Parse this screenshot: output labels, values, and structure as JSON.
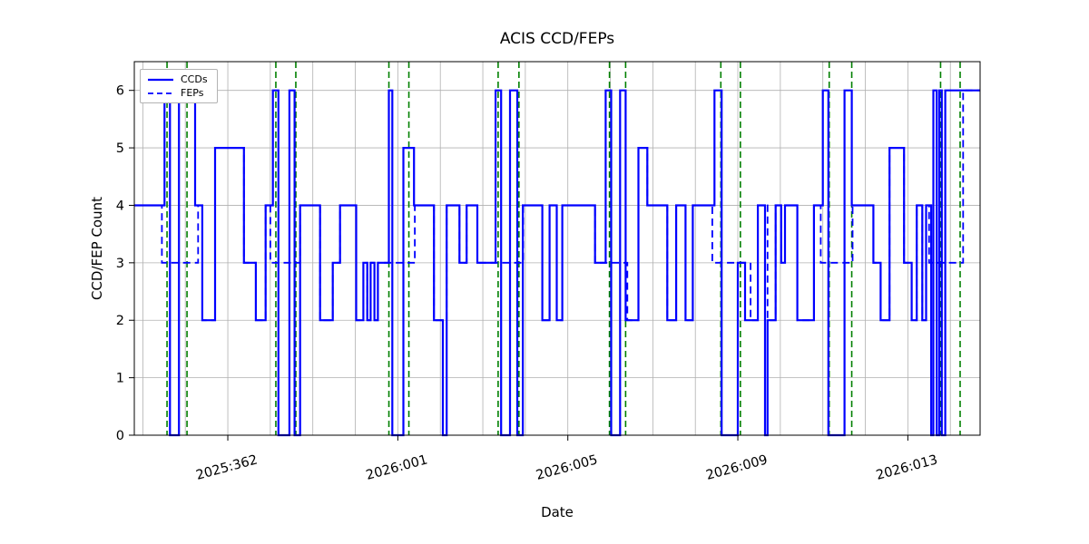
{
  "chart_data": {
    "type": "line",
    "title": "ACIS CCD/FEPs",
    "xlabel": "Date",
    "ylabel": "CCD/FEP Count",
    "xlim": [
      359.8,
      379.7
    ],
    "ylim": [
      0,
      6.5
    ],
    "yticks": [
      0,
      1,
      2,
      3,
      4,
      5,
      6
    ],
    "xticks": [
      {
        "x": 362,
        "label": "2025:362"
      },
      {
        "x": 366,
        "label": "2026:001"
      },
      {
        "x": 370,
        "label": "2026:005"
      },
      {
        "x": 374,
        "label": "2026:009"
      },
      {
        "x": 378,
        "label": "2026:013"
      }
    ],
    "grid": true,
    "grid_color": "#b0b0b0",
    "legend_position": "upper left",
    "series": [
      {
        "name": "CCDs",
        "style": "solid",
        "color": "#0000ff",
        "width": 2.2,
        "step": [
          [
            359.8,
            4
          ],
          [
            360.51,
            6
          ],
          [
            360.64,
            0
          ],
          [
            360.85,
            6
          ],
          [
            361.23,
            4
          ],
          [
            361.4,
            2
          ],
          [
            361.7,
            5
          ],
          [
            362.38,
            3
          ],
          [
            362.66,
            2
          ],
          [
            362.89,
            4
          ],
          [
            363.06,
            6
          ],
          [
            363.19,
            0
          ],
          [
            363.45,
            6
          ],
          [
            363.57,
            0
          ],
          [
            363.7,
            4
          ],
          [
            364.17,
            2
          ],
          [
            364.47,
            3
          ],
          [
            364.64,
            4
          ],
          [
            365.02,
            2
          ],
          [
            365.19,
            3
          ],
          [
            365.28,
            2
          ],
          [
            365.36,
            3
          ],
          [
            365.45,
            2
          ],
          [
            365.53,
            3
          ],
          [
            365.79,
            6
          ],
          [
            365.87,
            0
          ],
          [
            366.13,
            5
          ],
          [
            366.38,
            4
          ],
          [
            366.85,
            2
          ],
          [
            367.06,
            0
          ],
          [
            367.15,
            4
          ],
          [
            367.45,
            3
          ],
          [
            367.62,
            4
          ],
          [
            367.87,
            3
          ],
          [
            368.3,
            6
          ],
          [
            368.43,
            0
          ],
          [
            368.64,
            6
          ],
          [
            368.81,
            0
          ],
          [
            368.94,
            4
          ],
          [
            369.4,
            2
          ],
          [
            369.57,
            4
          ],
          [
            369.74,
            2
          ],
          [
            369.87,
            4
          ],
          [
            370.64,
            3
          ],
          [
            370.89,
            6
          ],
          [
            371.02,
            0
          ],
          [
            371.23,
            6
          ],
          [
            371.36,
            2
          ],
          [
            371.66,
            5
          ],
          [
            371.87,
            4
          ],
          [
            372.34,
            2
          ],
          [
            372.55,
            4
          ],
          [
            372.77,
            2
          ],
          [
            372.94,
            4
          ],
          [
            373.45,
            6
          ],
          [
            373.62,
            0
          ],
          [
            374.0,
            3
          ],
          [
            374.17,
            2
          ],
          [
            374.47,
            4
          ],
          [
            374.64,
            0
          ],
          [
            374.7,
            2
          ],
          [
            374.89,
            4
          ],
          [
            375.02,
            3
          ],
          [
            375.11,
            4
          ],
          [
            375.4,
            2
          ],
          [
            375.79,
            4
          ],
          [
            376.0,
            6
          ],
          [
            376.13,
            0
          ],
          [
            376.51,
            6
          ],
          [
            376.68,
            4
          ],
          [
            377.19,
            3
          ],
          [
            377.36,
            2
          ],
          [
            377.57,
            5
          ],
          [
            377.91,
            3
          ],
          [
            378.09,
            2
          ],
          [
            378.21,
            4
          ],
          [
            378.34,
            2
          ],
          [
            378.43,
            4
          ],
          [
            378.55,
            0
          ],
          [
            378.6,
            6
          ],
          [
            378.68,
            0
          ],
          [
            378.74,
            6
          ],
          [
            378.8,
            0
          ],
          [
            378.88,
            6
          ]
        ]
      },
      {
        "name": "FEPs",
        "style": "dashed",
        "color": "#0000ff",
        "width": 1.8,
        "step": [
          [
            359.8,
            4
          ],
          [
            360.45,
            3
          ],
          [
            361.3,
            4
          ],
          [
            361.4,
            2
          ],
          [
            361.7,
            5
          ],
          [
            362.38,
            3
          ],
          [
            362.66,
            2
          ],
          [
            362.89,
            4
          ],
          [
            363.0,
            3
          ],
          [
            363.7,
            4
          ],
          [
            364.17,
            2
          ],
          [
            364.47,
            3
          ],
          [
            364.64,
            4
          ],
          [
            365.02,
            2
          ],
          [
            365.19,
            3
          ],
          [
            365.28,
            2
          ],
          [
            365.36,
            3
          ],
          [
            365.45,
            2
          ],
          [
            365.53,
            3
          ],
          [
            366.4,
            4
          ],
          [
            366.85,
            2
          ],
          [
            367.15,
            4
          ],
          [
            367.45,
            3
          ],
          [
            367.62,
            4
          ],
          [
            367.87,
            3
          ],
          [
            368.95,
            4
          ],
          [
            369.4,
            2
          ],
          [
            369.57,
            4
          ],
          [
            369.74,
            2
          ],
          [
            369.87,
            4
          ],
          [
            370.64,
            3
          ],
          [
            371.4,
            2
          ],
          [
            371.66,
            5
          ],
          [
            371.87,
            4
          ],
          [
            372.34,
            2
          ],
          [
            372.55,
            4
          ],
          [
            372.77,
            2
          ],
          [
            372.94,
            4
          ],
          [
            373.4,
            3
          ],
          [
            374.3,
            2
          ],
          [
            374.47,
            4
          ],
          [
            374.7,
            2
          ],
          [
            374.89,
            4
          ],
          [
            375.02,
            3
          ],
          [
            375.11,
            4
          ],
          [
            375.4,
            2
          ],
          [
            375.79,
            4
          ],
          [
            375.95,
            3
          ],
          [
            376.7,
            4
          ],
          [
            377.19,
            3
          ],
          [
            377.36,
            2
          ],
          [
            377.57,
            5
          ],
          [
            377.91,
            3
          ],
          [
            378.09,
            2
          ],
          [
            378.21,
            4
          ],
          [
            378.34,
            2
          ],
          [
            378.43,
            4
          ],
          [
            378.5,
            3
          ],
          [
            379.3,
            6
          ]
        ]
      }
    ],
    "vlines": {
      "color": "#008000",
      "style": "dashed",
      "x": [
        360.57,
        361.04,
        363.13,
        363.6,
        365.79,
        366.26,
        368.36,
        368.85,
        370.98,
        371.36,
        373.6,
        374.06,
        376.15,
        376.68,
        378.77,
        379.23
      ]
    }
  }
}
